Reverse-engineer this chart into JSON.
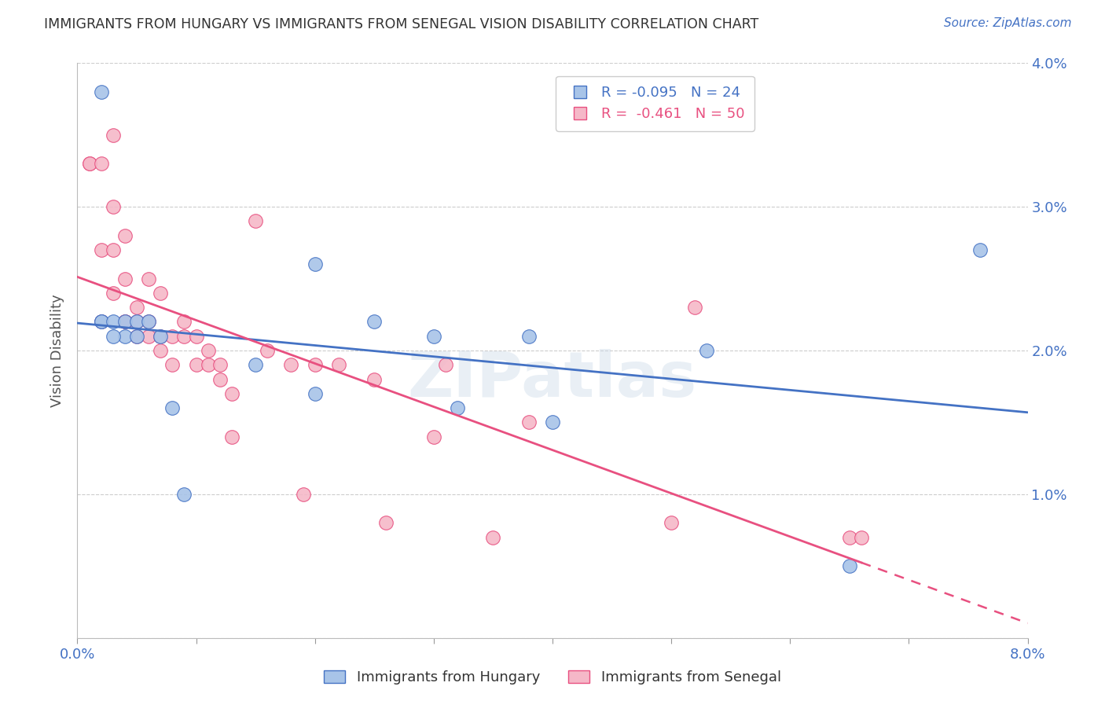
{
  "title": "IMMIGRANTS FROM HUNGARY VS IMMIGRANTS FROM SENEGAL VISION DISABILITY CORRELATION CHART",
  "source": "Source: ZipAtlas.com",
  "ylabel": "Vision Disability",
  "watermark": "ZIPatlas",
  "xlim": [
    0.0,
    0.08
  ],
  "ylim": [
    0.0,
    0.04
  ],
  "xticks": [
    0.0,
    0.01,
    0.02,
    0.03,
    0.04,
    0.05,
    0.06,
    0.07,
    0.08
  ],
  "yticks": [
    0.0,
    0.01,
    0.02,
    0.03,
    0.04
  ],
  "hungary_R": "-0.095",
  "hungary_N": "24",
  "senegal_R": "-0.461",
  "senegal_N": "50",
  "hungary_color": "#a8c4e8",
  "senegal_color": "#f5b8c8",
  "hungary_line_color": "#4472c4",
  "senegal_line_color": "#e85080",
  "background_color": "#ffffff",
  "grid_color": "#cccccc",
  "title_color": "#333333",
  "source_color": "#4472c4",
  "tick_label_color": "#4472c4",
  "ylabel_color": "#555555",
  "hungary_x": [
    0.002,
    0.002,
    0.003,
    0.004,
    0.004,
    0.005,
    0.005,
    0.006,
    0.007,
    0.008,
    0.009,
    0.015,
    0.02,
    0.02,
    0.025,
    0.03,
    0.032,
    0.038,
    0.04,
    0.053,
    0.065,
    0.076,
    0.003,
    0.002
  ],
  "hungary_y": [
    0.022,
    0.022,
    0.022,
    0.022,
    0.021,
    0.022,
    0.021,
    0.022,
    0.021,
    0.016,
    0.01,
    0.019,
    0.026,
    0.017,
    0.022,
    0.021,
    0.016,
    0.021,
    0.015,
    0.02,
    0.005,
    0.027,
    0.021,
    0.038
  ],
  "senegal_x": [
    0.001,
    0.001,
    0.002,
    0.002,
    0.002,
    0.003,
    0.003,
    0.003,
    0.003,
    0.004,
    0.004,
    0.004,
    0.004,
    0.005,
    0.005,
    0.005,
    0.006,
    0.006,
    0.006,
    0.007,
    0.007,
    0.007,
    0.008,
    0.008,
    0.009,
    0.009,
    0.01,
    0.01,
    0.011,
    0.011,
    0.012,
    0.012,
    0.013,
    0.013,
    0.015,
    0.016,
    0.018,
    0.019,
    0.02,
    0.022,
    0.025,
    0.026,
    0.03,
    0.031,
    0.035,
    0.038,
    0.05,
    0.052,
    0.065,
    0.066
  ],
  "senegal_y": [
    0.033,
    0.033,
    0.033,
    0.027,
    0.022,
    0.035,
    0.03,
    0.027,
    0.024,
    0.028,
    0.025,
    0.022,
    0.022,
    0.023,
    0.022,
    0.021,
    0.025,
    0.022,
    0.021,
    0.024,
    0.021,
    0.02,
    0.021,
    0.019,
    0.022,
    0.021,
    0.021,
    0.019,
    0.02,
    0.019,
    0.018,
    0.019,
    0.017,
    0.014,
    0.029,
    0.02,
    0.019,
    0.01,
    0.019,
    0.019,
    0.018,
    0.008,
    0.014,
    0.019,
    0.007,
    0.015,
    0.008,
    0.023,
    0.007,
    0.007
  ]
}
